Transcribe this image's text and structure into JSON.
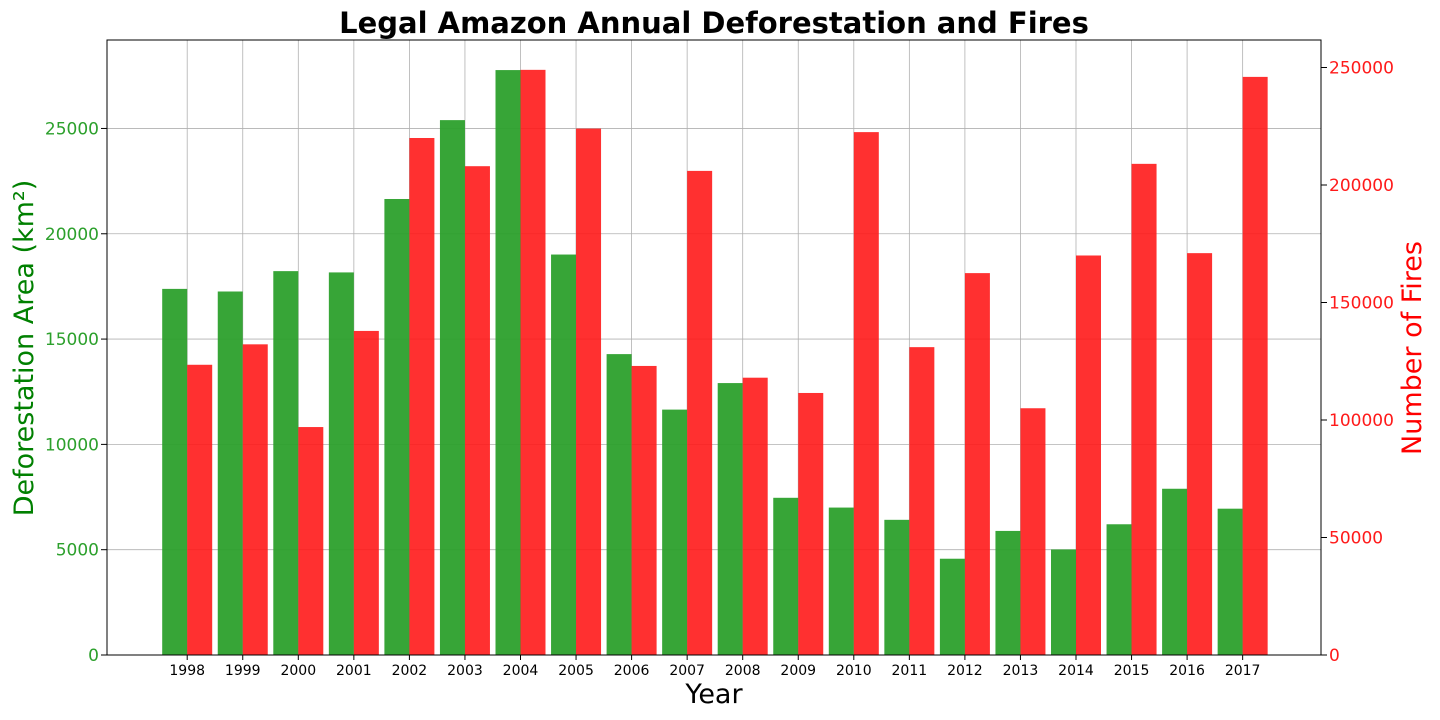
{
  "chart_data": {
    "type": "bar",
    "title": "Legal Amazon Annual Deforestation and Fires",
    "xlabel": "Year",
    "ylabel_left": "Deforestation Area (km²)",
    "ylabel_right": "Number of Fires",
    "categories": [
      "1998",
      "1999",
      "2000",
      "2001",
      "2002",
      "2003",
      "2004",
      "2005",
      "2006",
      "2007",
      "2008",
      "2009",
      "2010",
      "2011",
      "2012",
      "2013",
      "2014",
      "2015",
      "2016",
      "2017"
    ],
    "series": [
      {
        "name": "Deforestation Area (km²)",
        "axis": "left",
        "color": "#2ca02c",
        "values": [
          17383,
          17259,
          18226,
          18165,
          21651,
          25396,
          27772,
          19014,
          14286,
          11651,
          12911,
          7464,
          7000,
          6418,
          4571,
          5891,
          5012,
          6207,
          7893,
          6947
        ]
      },
      {
        "name": "Number of Fires",
        "axis": "right",
        "color": "#ff1a1a",
        "values": [
          123500,
          132200,
          97000,
          137900,
          220000,
          208000,
          249000,
          224000,
          123000,
          206000,
          118000,
          111500,
          222500,
          131000,
          162500,
          105000,
          170000,
          209000,
          171000,
          246000
        ]
      }
    ],
    "ylim_left": [
      0,
      29200
    ],
    "yticks_left": [
      "0",
      "5000",
      "10000",
      "15000",
      "20000",
      "25000"
    ],
    "ylim_right": [
      0,
      261700
    ],
    "yticks_right": [
      "0",
      "50000",
      "100000",
      "150000",
      "200000",
      "250000"
    ],
    "grid": true,
    "colors": {
      "left_axis": "#2ca02c",
      "left_label": "#008000",
      "right_axis": "#ff1a1a",
      "right_label": "#ff0000"
    }
  }
}
